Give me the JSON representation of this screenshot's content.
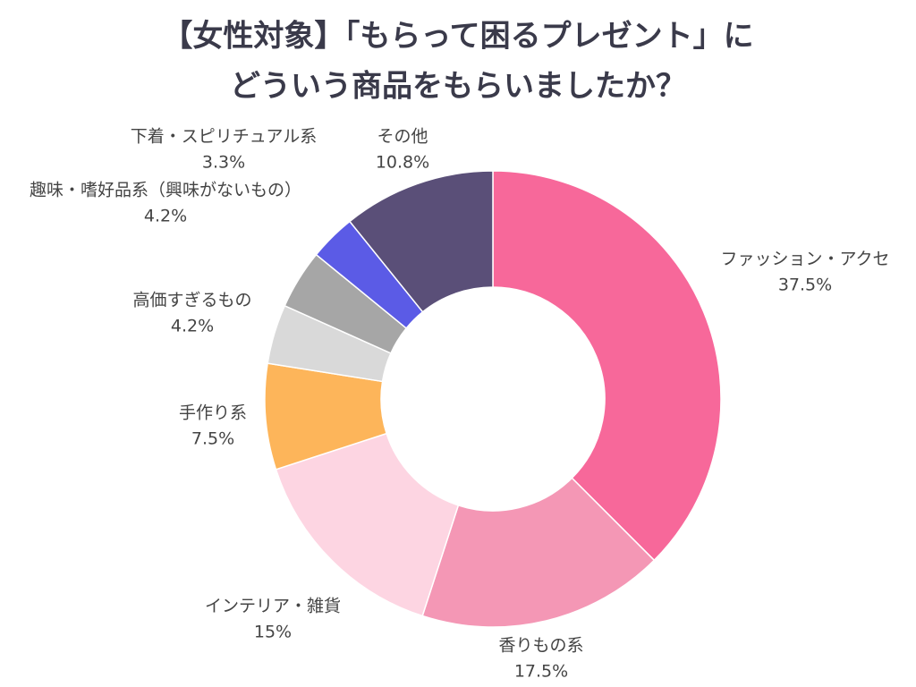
{
  "chart_data": {
    "type": "donut",
    "title": [
      "【女性対象】「もらって困るプレゼント」に",
      "どういう商品をもらいましたか？"
    ],
    "categories": [
      "ファッション・アクセ",
      "香りもの系",
      "インテリア・雑貨",
      "手作り系",
      "高価すぎるもの",
      "趣味・嗜好品系（興味がないもの）",
      "下着・スピリチュアル系",
      "その他"
    ],
    "values": [
      37.5,
      17.5,
      15,
      7.5,
      4.2,
      4.2,
      3.3,
      10.8
    ],
    "value_labels": [
      "37.5%",
      "17.5%",
      "15%",
      "7.5%",
      "4.2%",
      "4.2%",
      "3.3%",
      "10.8%"
    ],
    "colors": [
      "#f7689a",
      "#f497b5",
      "#fdd5e2",
      "#fdb55a",
      "#d9d9d9",
      "#a6a6a6",
      "#5b5be6",
      "#5a4f78"
    ]
  }
}
